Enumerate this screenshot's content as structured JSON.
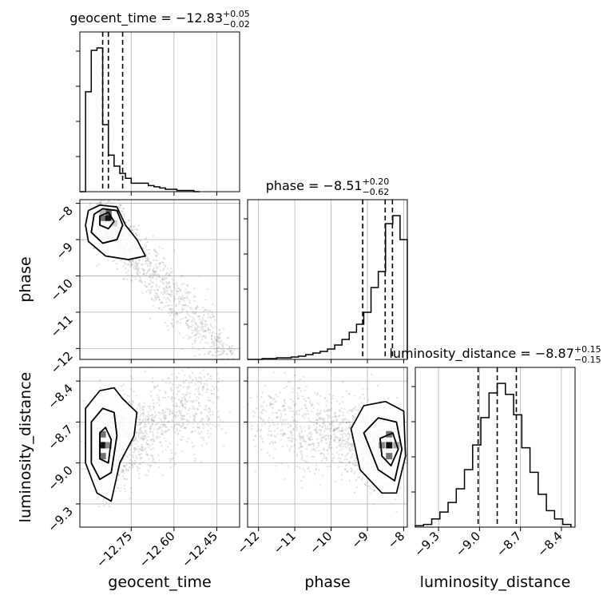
{
  "chart_data": {
    "type": "corner",
    "parameters": [
      {
        "name": "geocent_time",
        "title_prefix": "geocent_time = ",
        "median": "−12.83",
        "upper": "+0.05",
        "lower": "−0.02",
        "range": [
          -12.93,
          -12.37
        ],
        "ticks": [
          -12.75,
          -12.6,
          -12.45
        ],
        "tick_labels": [
          "−12.75",
          "−12.60",
          "−12.45"
        ],
        "quantiles": [
          -12.85,
          -12.83,
          -12.78
        ],
        "hist_edges": [
          -12.93,
          -12.91,
          -12.89,
          -12.87,
          -12.85,
          -12.83,
          -12.81,
          -12.79,
          -12.77,
          -12.75,
          -12.73,
          -12.71,
          -12.69,
          -12.67,
          -12.65,
          -12.63,
          -12.61,
          -12.59,
          -12.57,
          -12.55,
          -12.53,
          -12.51
        ],
        "hist_counts": [
          0,
          82,
          116,
          118,
          55,
          30,
          21,
          15,
          11,
          7,
          7,
          7,
          5,
          4,
          3,
          2,
          2,
          1,
          1,
          1,
          0
        ]
      },
      {
        "name": "phase",
        "title_prefix": "phase = ",
        "median": "−8.51",
        "upper": "+0.20",
        "lower": "−0.62",
        "range": [
          -12.3,
          -7.9
        ],
        "ticks": [
          -12,
          -11,
          -10,
          -9,
          -8
        ],
        "tick_labels": [
          "−12",
          "−11",
          "−10",
          "−9",
          "−8"
        ],
        "quantiles": [
          -9.13,
          -8.51,
          -8.31
        ],
        "hist_edges": [
          -12.3,
          -12.1,
          -11.9,
          -11.7,
          -11.5,
          -11.3,
          -11.1,
          -10.9,
          -10.7,
          -10.5,
          -10.3,
          -10.1,
          -9.9,
          -9.7,
          -9.5,
          -9.3,
          -9.1,
          -8.9,
          -8.7,
          -8.5,
          -8.3,
          -8.1,
          -7.9
        ],
        "hist_counts": [
          0,
          0,
          1,
          1,
          2,
          2,
          3,
          4,
          6,
          8,
          10,
          13,
          18,
          25,
          34,
          44,
          59,
          90,
          110,
          170,
          180,
          150
        ]
      },
      {
        "name": "luminosity_distance",
        "title_prefix": "luminosity_distance = ",
        "median": "−8.87",
        "upper": "+0.15",
        "lower": "−0.15",
        "range": [
          -9.47,
          -8.3
        ],
        "ticks": [
          -9.3,
          -9.0,
          -8.7,
          -8.4
        ],
        "tick_labels": [
          "−9.3",
          "−9.0",
          "−8.7",
          "−8.4"
        ],
        "quantiles": [
          -9.01,
          -8.87,
          -8.73
        ],
        "hist_edges": [
          -9.47,
          -9.41,
          -9.35,
          -9.29,
          -9.23,
          -9.17,
          -9.11,
          -9.05,
          -8.99,
          -8.93,
          -8.87,
          -8.81,
          -8.75,
          -8.69,
          -8.63,
          -8.57,
          -8.51,
          -8.45,
          -8.39,
          -8.33
        ],
        "hist_counts": [
          1,
          2,
          6,
          11,
          18,
          28,
          42,
          60,
          80,
          98,
          105,
          97,
          82,
          58,
          40,
          24,
          12,
          6,
          2
        ]
      }
    ],
    "axis_labels": {
      "x": [
        "geocent_time",
        "phase",
        "luminosity_distance"
      ],
      "y": [
        "phase",
        "luminosity_distance"
      ]
    },
    "grid": true,
    "colors": {
      "line": "#000000",
      "samples": "#7f7f7f",
      "grid": "#b0b0b0"
    },
    "contours": [
      {
        "panel": "geocent_time-phase",
        "levels": [
          [
            [
              -12.9,
              -8.2
            ],
            [
              -12.86,
              -8.05
            ],
            [
              -12.8,
              -8.1
            ],
            [
              -12.77,
              -8.6
            ],
            [
              -12.73,
              -9.0
            ],
            [
              -12.7,
              -9.45
            ],
            [
              -12.76,
              -9.55
            ],
            [
              -12.84,
              -9.45
            ],
            [
              -12.9,
              -9.05
            ],
            [
              -12.91,
              -8.6
            ]
          ],
          [
            [
              -12.88,
              -8.3
            ],
            [
              -12.85,
              -8.15
            ],
            [
              -12.8,
              -8.2
            ],
            [
              -12.78,
              -8.6
            ],
            [
              -12.8,
              -9.0
            ],
            [
              -12.85,
              -9.1
            ],
            [
              -12.89,
              -8.8
            ]
          ],
          [
            [
              -12.86,
              -8.35
            ],
            [
              -12.83,
              -8.25
            ],
            [
              -12.81,
              -8.5
            ],
            [
              -12.83,
              -8.7
            ],
            [
              -12.86,
              -8.6
            ]
          ]
        ],
        "density_cells": [
          {
            "x": -12.85,
            "y": -8.4,
            "w": 0.6
          },
          {
            "x": -12.83,
            "y": -8.4,
            "w": 1.0
          },
          {
            "x": -12.83,
            "y": -8.25,
            "w": 0.7
          },
          {
            "x": -12.85,
            "y": -8.25,
            "w": 0.3
          },
          {
            "x": -12.81,
            "y": -8.55,
            "w": 0.2
          }
        ]
      },
      {
        "panel": "geocent_time-luminosity_distance",
        "levels": [
          [
            [
              -12.91,
              -8.6
            ],
            [
              -12.86,
              -8.47
            ],
            [
              -12.81,
              -8.45
            ],
            [
              -12.78,
              -8.53
            ],
            [
              -12.73,
              -8.63
            ],
            [
              -12.74,
              -8.8
            ],
            [
              -12.79,
              -9.0
            ],
            [
              -12.82,
              -9.28
            ],
            [
              -12.87,
              -9.22
            ],
            [
              -12.91,
              -9.0
            ]
          ],
          [
            [
              -12.89,
              -8.7
            ],
            [
              -12.85,
              -8.6
            ],
            [
              -12.81,
              -8.63
            ],
            [
              -12.8,
              -8.8
            ],
            [
              -12.82,
              -9.07
            ],
            [
              -12.86,
              -9.12
            ],
            [
              -12.89,
              -9.0
            ]
          ],
          [
            [
              -12.86,
              -8.78
            ],
            [
              -12.84,
              -8.74
            ],
            [
              -12.82,
              -8.83
            ],
            [
              -12.83,
              -9.0
            ],
            [
              -12.86,
              -8.97
            ]
          ]
        ],
        "density_cells": [
          {
            "x": -12.85,
            "y": -8.87,
            "w": 1.0
          },
          {
            "x": -12.85,
            "y": -8.79,
            "w": 0.6
          },
          {
            "x": -12.85,
            "y": -8.95,
            "w": 0.6
          },
          {
            "x": -12.83,
            "y": -8.87,
            "w": 0.5
          }
        ]
      },
      {
        "panel": "phase-luminosity_distance",
        "levels": [
          [
            [
              -9.45,
              -8.75
            ],
            [
              -9.1,
              -8.58
            ],
            [
              -8.5,
              -8.55
            ],
            [
              -8.0,
              -8.62
            ],
            [
              -7.95,
              -8.95
            ],
            [
              -8.2,
              -9.22
            ],
            [
              -8.6,
              -9.22
            ],
            [
              -9.2,
              -9.05
            ]
          ],
          [
            [
              -9.1,
              -8.78
            ],
            [
              -8.7,
              -8.67
            ],
            [
              -8.2,
              -8.7
            ],
            [
              -8.05,
              -8.9
            ],
            [
              -8.25,
              -9.13
            ],
            [
              -8.7,
              -9.05
            ]
          ],
          [
            [
              -8.65,
              -8.82
            ],
            [
              -8.3,
              -8.78
            ],
            [
              -8.15,
              -8.9
            ],
            [
              -8.35,
              -9.02
            ],
            [
              -8.6,
              -8.95
            ]
          ]
        ],
        "density_cells": [
          {
            "x": -8.4,
            "y": -8.87,
            "w": 1.0
          },
          {
            "x": -8.4,
            "y": -8.79,
            "w": 0.6
          },
          {
            "x": -8.4,
            "y": -8.95,
            "w": 0.6
          },
          {
            "x": -8.6,
            "y": -8.87,
            "w": 0.5
          },
          {
            "x": -8.2,
            "y": -8.87,
            "w": 0.4
          }
        ]
      }
    ]
  }
}
